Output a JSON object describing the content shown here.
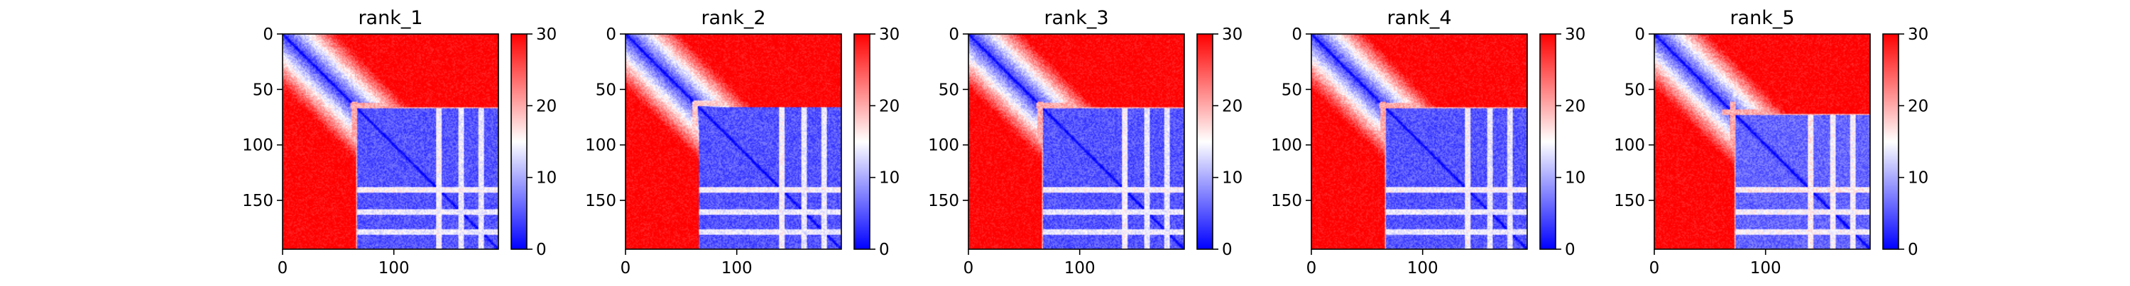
{
  "figure": {
    "title": ""
  },
  "colorbar": {
    "ticks": [
      0,
      10,
      20,
      30
    ],
    "vmin": 0,
    "vmax": 30,
    "colormap": "bwr",
    "low_color": "#0000ff",
    "mid_color": "#ffffff",
    "high_color": "#ff0000"
  },
  "chart_data": [
    {
      "type": "heatmap",
      "title": "rank_1",
      "n": 194,
      "xlim": [
        0,
        194
      ],
      "ylim": [
        194,
        0
      ],
      "xticks": [
        0,
        100
      ],
      "yticks": [
        0,
        50,
        100,
        150
      ],
      "blocks": [
        {
          "start": 8,
          "end": 24,
          "value": 10
        },
        {
          "start": 43,
          "end": 58,
          "value": 18
        },
        {
          "start": 66,
          "end": 194,
          "value": 5
        }
      ],
      "stripes": [
        {
          "row": 64,
          "value": 20
        },
        {
          "row": 140,
          "value": 15
        },
        {
          "row": 160,
          "value": 14
        },
        {
          "row": 178,
          "value": 14
        }
      ]
    },
    {
      "type": "heatmap",
      "title": "rank_2",
      "n": 194,
      "xlim": [
        0,
        194
      ],
      "ylim": [
        194,
        0
      ],
      "xticks": [
        0,
        100
      ],
      "yticks": [
        0,
        50,
        100,
        150
      ],
      "blocks": [
        {
          "start": 8,
          "end": 24,
          "value": 10
        },
        {
          "start": 43,
          "end": 58,
          "value": 18
        },
        {
          "start": 66,
          "end": 194,
          "value": 5
        }
      ],
      "stripes": [
        {
          "row": 62,
          "value": 18
        },
        {
          "row": 140,
          "value": 15
        },
        {
          "row": 160,
          "value": 14
        },
        {
          "row": 178,
          "value": 14
        }
      ]
    },
    {
      "type": "heatmap",
      "title": "rank_3",
      "n": 194,
      "xlim": [
        0,
        194
      ],
      "ylim": [
        194,
        0
      ],
      "xticks": [
        0,
        100
      ],
      "yticks": [
        0,
        50,
        100,
        150
      ],
      "blocks": [
        {
          "start": 8,
          "end": 24,
          "value": 10
        },
        {
          "start": 43,
          "end": 58,
          "value": 18
        },
        {
          "start": 66,
          "end": 194,
          "value": 5
        }
      ],
      "stripes": [
        {
          "row": 64,
          "value": 20
        },
        {
          "row": 140,
          "value": 15
        },
        {
          "row": 160,
          "value": 14
        },
        {
          "row": 178,
          "value": 14
        }
      ]
    },
    {
      "type": "heatmap",
      "title": "rank_4",
      "n": 194,
      "xlim": [
        0,
        194
      ],
      "ylim": [
        194,
        0
      ],
      "xticks": [
        0,
        100
      ],
      "yticks": [
        0,
        50,
        100,
        150
      ],
      "blocks": [
        {
          "start": 8,
          "end": 24,
          "value": 10
        },
        {
          "start": 43,
          "end": 58,
          "value": 18
        },
        {
          "start": 66,
          "end": 194,
          "value": 5
        }
      ],
      "stripes": [
        {
          "row": 64,
          "value": 20
        },
        {
          "row": 140,
          "value": 15
        },
        {
          "row": 160,
          "value": 14
        },
        {
          "row": 178,
          "value": 14
        }
      ]
    },
    {
      "type": "heatmap",
      "title": "rank_5",
      "n": 194,
      "xlim": [
        0,
        194
      ],
      "ylim": [
        194,
        0
      ],
      "xticks": [
        0,
        100
      ],
      "yticks": [
        0,
        50,
        100,
        150
      ],
      "blocks": [
        {
          "start": 8,
          "end": 24,
          "value": 10
        },
        {
          "start": 43,
          "end": 58,
          "value": 18
        },
        {
          "start": 72,
          "end": 194,
          "value": 6
        }
      ],
      "stripes": [
        {
          "row": 70,
          "value": 20
        },
        {
          "row": 140,
          "value": 16
        },
        {
          "row": 160,
          "value": 15
        },
        {
          "row": 178,
          "value": 15
        }
      ]
    }
  ]
}
